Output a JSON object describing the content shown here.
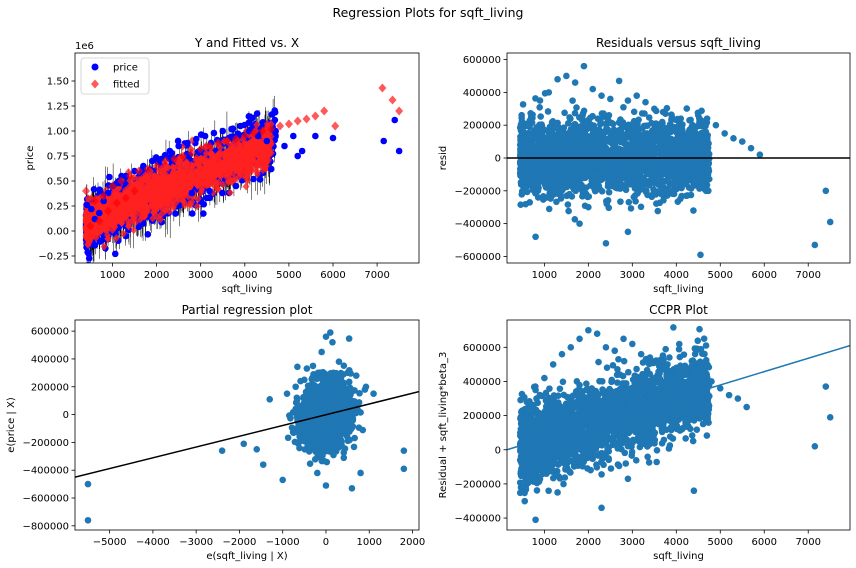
{
  "figure": {
    "suptitle": "Regression Plots for sqft_living"
  },
  "chart_data": [
    {
      "type": "scatter",
      "title": "Y and Fitted vs. X",
      "xlabel": "sqft_living",
      "ylabel": "price",
      "xlim": [
        150,
        7950
      ],
      "ylim": [
        -0.32,
        1.78
      ],
      "y_offset_text": "1e6",
      "xticks": [
        1000,
        2000,
        3000,
        4000,
        5000,
        6000,
        7000
      ],
      "yticks": [
        -0.25,
        0.0,
        0.25,
        0.5,
        0.75,
        1.0,
        1.25,
        1.5
      ],
      "ytick_labels": [
        "−0.25",
        "0.00",
        "0.25",
        "0.50",
        "0.75",
        "1.00",
        "1.25",
        "1.50"
      ],
      "legend": {
        "placement": "top-left",
        "entries": [
          "price",
          "fitted"
        ]
      },
      "series": [
        {
          "name": "price",
          "color": "#0000ff",
          "marker": "circle",
          "x": [
            420,
            520,
            600,
            700,
            800,
            900,
            1000,
            1150,
            1300,
            1500,
            1700,
            1900,
            2100,
            2300,
            2500,
            2700,
            2900,
            3100,
            3300,
            3500,
            3700,
            3900,
            4100,
            4300,
            4500,
            4700,
            4900,
            5100,
            5300,
            5600,
            6000,
            7150,
            7400,
            7500,
            3800,
            4200,
            4600,
            2800,
            3200,
            5200
          ],
          "y": [
            0.26,
            0.22,
            0.12,
            0.18,
            0.3,
            0.38,
            0.45,
            0.48,
            0.55,
            0.6,
            0.65,
            0.7,
            0.72,
            0.8,
            0.85,
            0.88,
            0.92,
            0.95,
            0.98,
            1.0,
            1.02,
            1.05,
            1.0,
            0.95,
            0.9,
            1.0,
            0.85,
            0.95,
            0.8,
            0.95,
            0.93,
            0.9,
            1.11,
            0.8,
            0.45,
            0.52,
            0.62,
            0.38,
            0.4,
            0.75
          ]
        },
        {
          "name": "fitted",
          "color": "#ff0000",
          "marker": "diamond",
          "x": [
            400,
            500,
            600,
            700,
            800,
            900,
            1000,
            1100,
            1200,
            1300,
            1400,
            1500,
            1600,
            1800,
            2000,
            2200,
            2400,
            2600,
            2800,
            3000,
            3200,
            3400,
            3600,
            3800,
            4000,
            4200,
            4400,
            4600,
            4800,
            5000,
            5200,
            5400,
            5600,
            5800,
            6050,
            7120,
            7350,
            7500
          ],
          "y": [
            0.4,
            0.05,
            0.3,
            0.1,
            0.35,
            0.2,
            0.45,
            0.28,
            0.5,
            0.33,
            0.55,
            0.4,
            0.6,
            0.62,
            0.65,
            0.7,
            0.72,
            0.75,
            0.78,
            0.82,
            0.85,
            0.88,
            0.9,
            0.92,
            0.95,
            0.98,
            1.0,
            1.02,
            1.05,
            1.07,
            1.1,
            1.12,
            1.15,
            1.2,
            1.05,
            1.43,
            1.31,
            1.2
          ]
        }
      ]
    },
    {
      "type": "scatter",
      "title": "Residuals versus sqft_living",
      "xlabel": "sqft_living",
      "ylabel": "resid",
      "xlim": [
        150,
        7950
      ],
      "ylim": [
        -640000,
        640000
      ],
      "xticks": [
        1000,
        2000,
        3000,
        4000,
        5000,
        6000,
        7000
      ],
      "yticks": [
        -600000,
        -400000,
        -200000,
        0,
        200000,
        400000,
        600000
      ],
      "ytick_labels": [
        "−600000",
        "−400000",
        "−200000",
        "0",
        "200000",
        "400000",
        "600000"
      ],
      "hline": 0,
      "series": [
        {
          "name": "",
          "color": "#1f77b4",
          "x": [
            700,
            900,
            1100,
            1300,
            1500,
            1700,
            1900,
            2100,
            2300,
            2500,
            2700,
            2900,
            3100,
            3300,
            3500,
            3700,
            3900,
            4100,
            4300,
            4500,
            4700,
            4900,
            5100,
            5300,
            5500,
            5700,
            5900,
            7150,
            7400,
            7500,
            2000,
            2400,
            1800,
            2900,
            4550,
            800
          ],
          "y": [
            250000,
            350000,
            400000,
            480000,
            500000,
            460000,
            560000,
            420000,
            380000,
            360000,
            470000,
            350000,
            380000,
            340000,
            300000,
            280000,
            250000,
            240000,
            230000,
            260000,
            240000,
            200000,
            150000,
            120000,
            100000,
            60000,
            20000,
            -530000,
            -200000,
            -390000,
            -300000,
            -520000,
            -400000,
            -450000,
            -590000,
            -480000
          ]
        }
      ]
    },
    {
      "type": "scatter",
      "title": "Partial regression plot",
      "xlabel": "e(sqft_living | X)",
      "ylabel": "e(price | X)",
      "xlim": [
        -5800,
        2150
      ],
      "ylim": [
        -830000,
        680000
      ],
      "xticks": [
        -5000,
        -4000,
        -3000,
        -2000,
        -1000,
        0,
        1000,
        2000
      ],
      "xtick_labels": [
        "−5000",
        "−4000",
        "−3000",
        "−2000",
        "−1000",
        "0",
        "1000",
        "2000"
      ],
      "yticks": [
        -800000,
        -600000,
        -400000,
        -200000,
        0,
        200000,
        400000,
        600000
      ],
      "ytick_labels": [
        "−800000",
        "−600000",
        "−400000",
        "−200000",
        "0",
        "200000",
        "400000",
        "600000"
      ],
      "fit_line": {
        "x": [
          -5800,
          2150
        ],
        "y": [
          -450000,
          165000
        ]
      },
      "series": [
        {
          "name": "",
          "color": "#1f77b4",
          "x": [
            -5500,
            -5500,
            -2400,
            -1900,
            -1600,
            -1450,
            -1300,
            -1000,
            -900,
            -700,
            -500,
            -300,
            -100,
            0,
            100,
            300,
            500,
            700,
            900,
            1100,
            1800,
            1800,
            600,
            800,
            0,
            -200,
            150
          ],
          "y": [
            -500000,
            -760000,
            -260000,
            -210000,
            -250000,
            -360000,
            110000,
            -470000,
            150000,
            200000,
            250000,
            350000,
            450000,
            560000,
            590000,
            380000,
            300000,
            280000,
            180000,
            150000,
            -260000,
            -390000,
            -530000,
            -420000,
            -510000,
            -420000,
            520000
          ]
        }
      ]
    },
    {
      "type": "scatter",
      "title": "CCPR Plot",
      "xlabel": "sqft_living",
      "ylabel": "Residual + sqft_living*beta_3",
      "xlim": [
        150,
        7950
      ],
      "ylim": [
        -470000,
        760000
      ],
      "xticks": [
        1000,
        2000,
        3000,
        4000,
        5000,
        6000,
        7000
      ],
      "yticks": [
        -400000,
        -200000,
        0,
        200000,
        400000,
        600000
      ],
      "ytick_labels": [
        "−400000",
        "−200000",
        "0",
        "200000",
        "400000",
        "600000"
      ],
      "fit_line": {
        "x": [
          150,
          7950
        ],
        "y": [
          0,
          610000
        ]
      },
      "series": [
        {
          "name": "",
          "color": "#1f77b4",
          "x": [
            600,
            800,
            1000,
            1200,
            1400,
            1600,
            1800,
            2000,
            2200,
            2400,
            2600,
            2800,
            3000,
            3200,
            3400,
            3600,
            3800,
            4000,
            4200,
            4400,
            4600,
            4800,
            5000,
            5200,
            5400,
            5600,
            7150,
            7400,
            7500,
            800,
            1300,
            2300,
            2900,
            4400
          ],
          "y": [
            280000,
            350000,
            420000,
            500000,
            560000,
            600000,
            650000,
            700000,
            680000,
            600000,
            580000,
            650000,
            620000,
            560000,
            540000,
            520000,
            500000,
            480000,
            460000,
            440000,
            420000,
            400000,
            360000,
            320000,
            300000,
            250000,
            20000,
            370000,
            190000,
            -410000,
            -250000,
            -340000,
            -170000,
            -240000
          ]
        }
      ]
    }
  ]
}
